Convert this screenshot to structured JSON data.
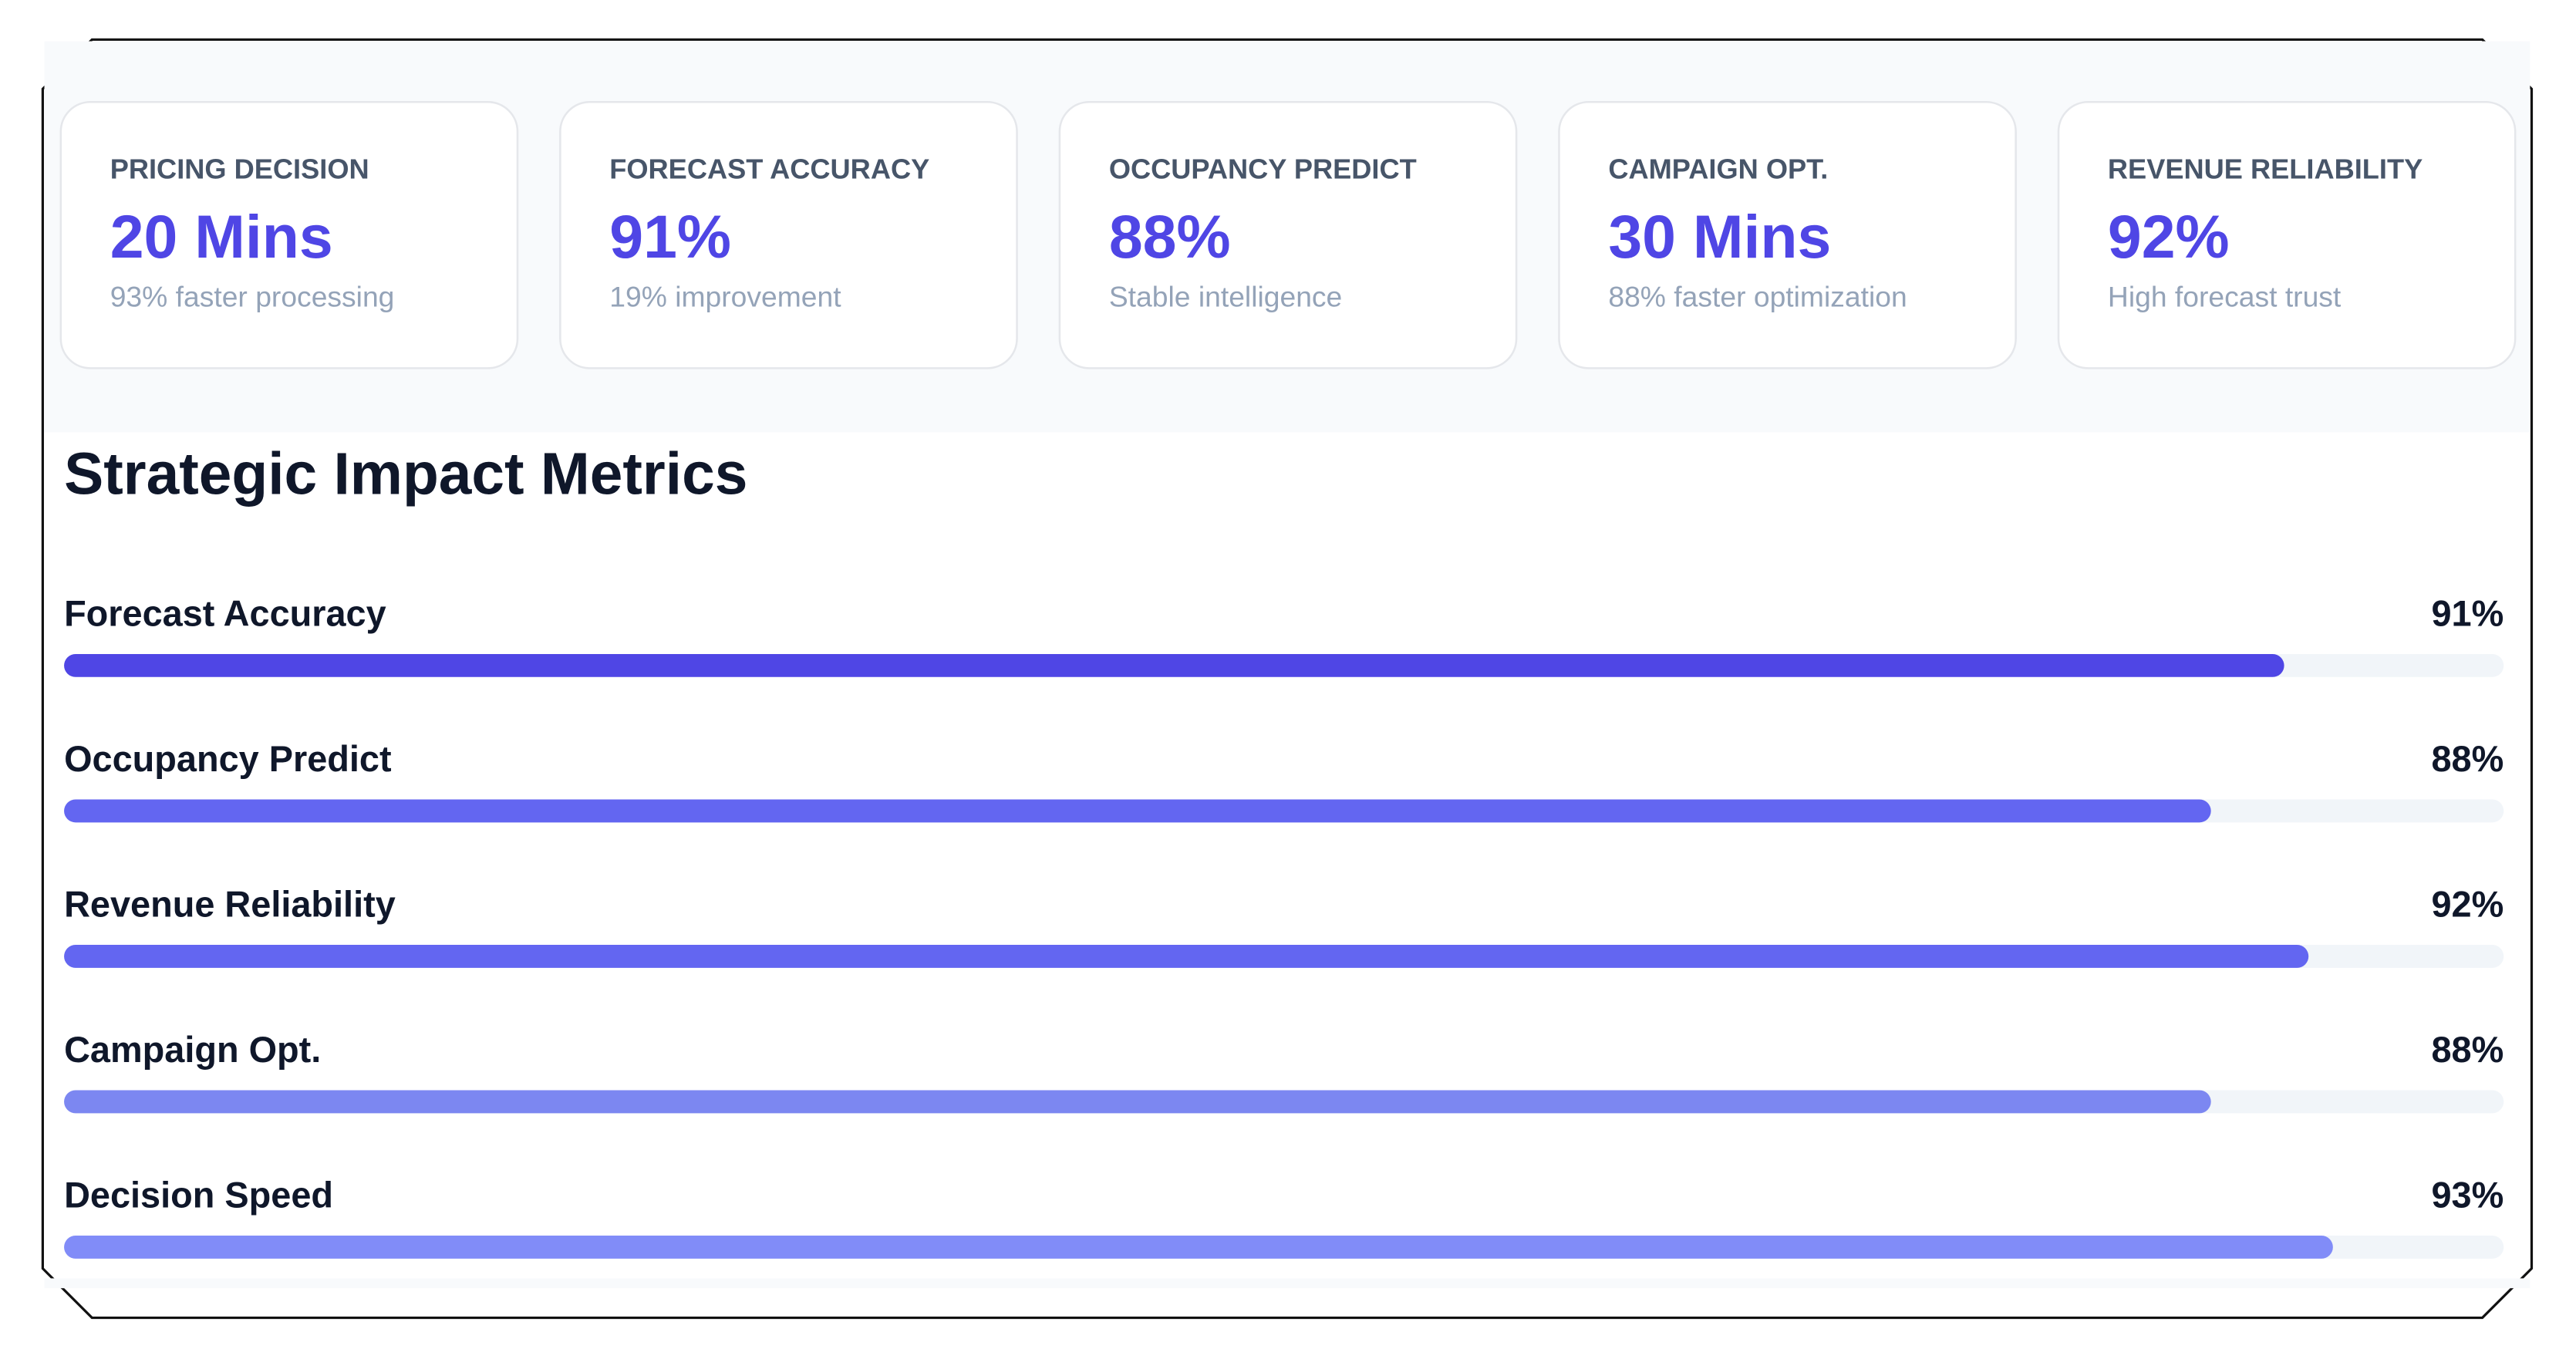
{
  "cards": [
    {
      "label": "PRICING DECISION",
      "value": "20 Mins",
      "note": "93% faster processing"
    },
    {
      "label": "FORECAST ACCURACY",
      "value": "91%",
      "note": "19% improvement"
    },
    {
      "label": "OCCUPANCY PREDICT",
      "value": "88%",
      "note": "Stable intelligence"
    },
    {
      "label": "CAMPAIGN OPT.",
      "value": "30 Mins",
      "note": "88% faster optimization"
    },
    {
      "label": "REVENUE RELIABILITY",
      "value": "92%",
      "note": "High forecast trust"
    }
  ],
  "chart_data": {
    "type": "bar",
    "title": "Strategic Impact Metrics",
    "categories": [
      "Forecast Accuracy",
      "Occupancy Predict",
      "Revenue Reliability",
      "Campaign Opt.",
      "Decision Speed"
    ],
    "values": [
      91,
      88,
      92,
      88,
      93
    ],
    "value_labels": [
      "91%",
      "88%",
      "92%",
      "88%",
      "93%"
    ],
    "colors": [
      "#4f46e5",
      "#6366f1",
      "#6366f1",
      "#7c87f1",
      "#818cf8"
    ],
    "xlim": [
      0,
      100
    ]
  }
}
